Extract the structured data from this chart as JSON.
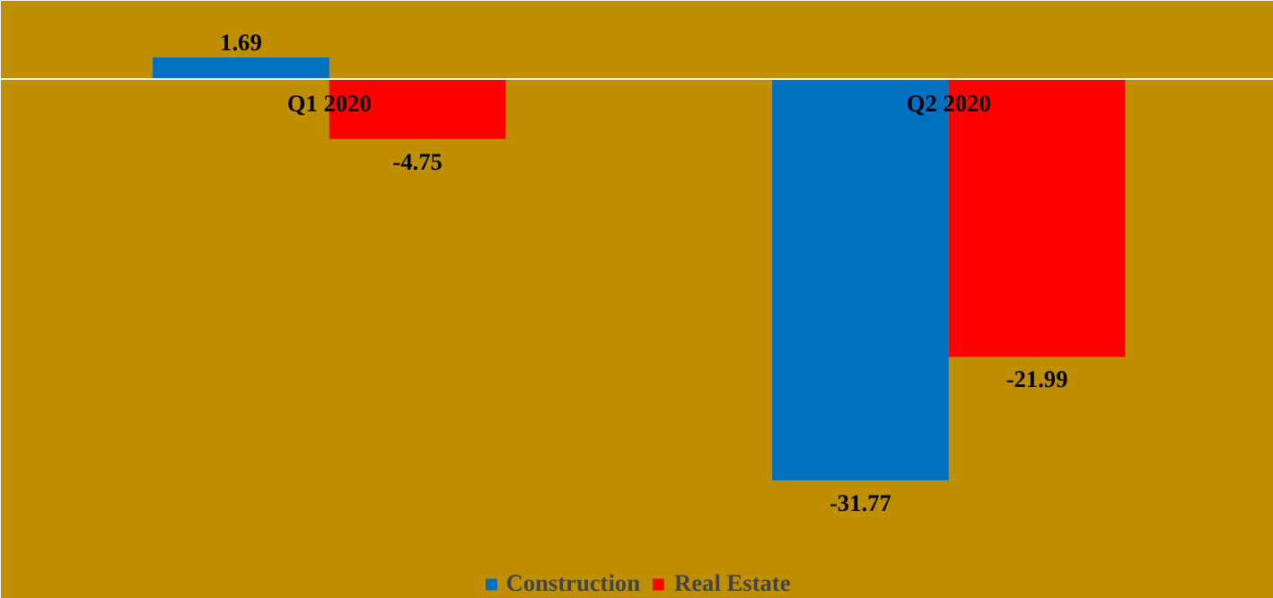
{
  "chart_data": {
    "type": "bar",
    "categories": [
      "Q1 2020",
      "Q2 2020"
    ],
    "series": [
      {
        "name": "Construction",
        "color": "#0070c0",
        "values": [
          1.69,
          -31.77
        ]
      },
      {
        "name": "Real Estate",
        "color": "#ff0000",
        "values": [
          -4.75,
          -21.99
        ]
      }
    ],
    "data_labels": true,
    "legend": "bottom",
    "grid": false
  }
}
